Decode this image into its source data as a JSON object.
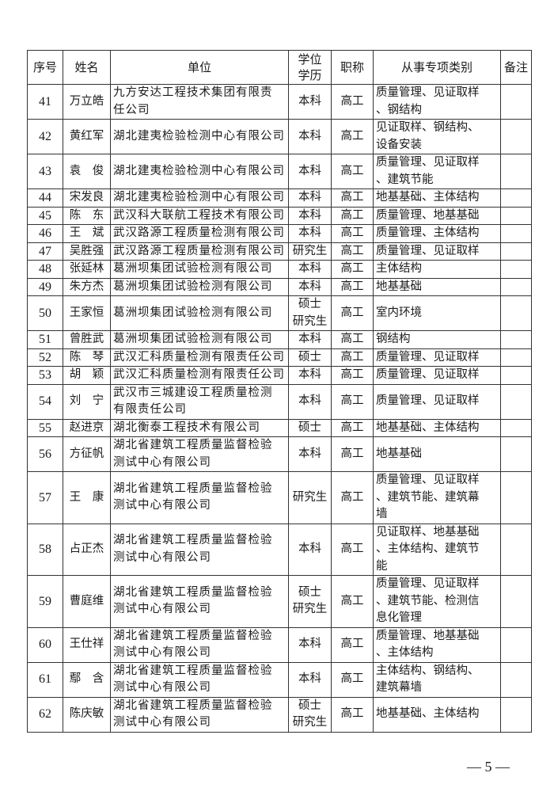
{
  "table": {
    "headers": [
      "序号",
      "姓名",
      "单位",
      "学位\n学历",
      "职称",
      "从事专项类别",
      "备注"
    ],
    "rows": [
      {
        "no": "41",
        "name": "万立皓",
        "unit": "九方安达工程技术集团有限责\n任公司",
        "degree": "本科",
        "title": "高工",
        "categories": "质量管理、见证取样\n、钢结构",
        "remark": ""
      },
      {
        "no": "42",
        "name": "黄红军",
        "unit": "湖北建夷检验检测中心有限公司",
        "degree": "本科",
        "title": "高工",
        "categories": "见证取样、钢结构、\n设备安装",
        "remark": ""
      },
      {
        "no": "43",
        "name": "袁　俊",
        "unit": "湖北建夷检验检测中心有限公司",
        "degree": "本科",
        "title": "高工",
        "categories": "质量管理、见证取样\n、建筑节能",
        "remark": ""
      },
      {
        "no": "44",
        "name": "宋发良",
        "unit": "湖北建夷检验检测中心有限公司",
        "degree": "本科",
        "title": "高工",
        "categories": "地基基础、主体结构",
        "remark": ""
      },
      {
        "no": "45",
        "name": "陈　东",
        "unit": "武汉科大联航工程技术有限公司",
        "degree": "本科",
        "title": "高工",
        "categories": "质量管理、地基基础",
        "remark": ""
      },
      {
        "no": "46",
        "name": "王　斌",
        "unit": "武汉路源工程质量检测有限公司",
        "degree": "本科",
        "title": "高工",
        "categories": "质量管理、主体结构",
        "remark": ""
      },
      {
        "no": "47",
        "name": "吴胜强",
        "unit": "武汉路源工程质量检测有限公司",
        "degree": "研究生",
        "title": "高工",
        "categories": "质量管理、见证取样",
        "remark": ""
      },
      {
        "no": "48",
        "name": "张延林",
        "unit": "葛洲坝集团试验检测有限公司",
        "degree": "本科",
        "title": "高工",
        "categories": "主体结构",
        "remark": ""
      },
      {
        "no": "49",
        "name": "朱方杰",
        "unit": "葛洲坝集团试验检测有限公司",
        "degree": "本科",
        "title": "高工",
        "categories": "地基基础",
        "remark": ""
      },
      {
        "no": "50",
        "name": "王家恒",
        "unit": "葛洲坝集团试验检测有限公司",
        "degree": "硕士\n研究生",
        "title": "高工",
        "categories": "室内环境",
        "remark": ""
      },
      {
        "no": "51",
        "name": "曾胜武",
        "unit": "葛洲坝集团试验检测有限公司",
        "degree": "本科",
        "title": "高工",
        "categories": "钢结构",
        "remark": ""
      },
      {
        "no": "52",
        "name": "陈　琴",
        "unit": "武汉汇科质量检测有限责任公司",
        "degree": "硕士",
        "title": "高工",
        "categories": "质量管理、见证取样",
        "remark": ""
      },
      {
        "no": "53",
        "name": "胡　颖",
        "unit": "武汉汇科质量检测有限责任公司",
        "degree": "本科",
        "title": "高工",
        "categories": "质量管理、见证取样",
        "remark": ""
      },
      {
        "no": "54",
        "name": "刘　宁",
        "unit": "武汉市三城建设工程质量检测\n有限责任公司",
        "degree": "本科",
        "title": "高工",
        "categories": "质量管理、见证取样",
        "remark": ""
      },
      {
        "no": "55",
        "name": "赵进京",
        "unit": "湖北衡泰工程技术有限公司",
        "degree": "硕士",
        "title": "高工",
        "categories": "地基基础、主体结构",
        "remark": ""
      },
      {
        "no": "56",
        "name": "方征帆",
        "unit": "湖北省建筑工程质量监督检验\n测试中心有限公司",
        "degree": "本科",
        "title": "高工",
        "categories": "地基基础",
        "remark": ""
      },
      {
        "no": "57",
        "name": "王　康",
        "unit": "湖北省建筑工程质量监督检验\n测试中心有限公司",
        "degree": "研究生",
        "title": "高工",
        "categories": "质量管理、见证取样\n、建筑节能、建筑幕\n墙",
        "remark": ""
      },
      {
        "no": "58",
        "name": "占正杰",
        "unit": "湖北省建筑工程质量监督检验\n测试中心有限公司",
        "degree": "本科",
        "title": "高工",
        "categories": "见证取样、地基基础\n、主体结构、建筑节\n能",
        "remark": ""
      },
      {
        "no": "59",
        "name": "曹庭维",
        "unit": "湖北省建筑工程质量监督检验\n测试中心有限公司",
        "degree": "硕士\n研究生",
        "title": "高工",
        "categories": "质量管理、见证取样\n、建筑节能、检测信\n息化管理",
        "remark": ""
      },
      {
        "no": "60",
        "name": "王仕祥",
        "unit": "湖北省建筑工程质量监督检验\n测试中心有限公司",
        "degree": "本科",
        "title": "高工",
        "categories": "质量管理、地基基础\n、主体结构",
        "remark": ""
      },
      {
        "no": "61",
        "name": "鄢　含",
        "unit": "湖北省建筑工程质量监督检验\n测试中心有限公司",
        "degree": "本科",
        "title": "高工",
        "categories": "主体结构、钢结构、\n建筑幕墙",
        "remark": ""
      },
      {
        "no": "62",
        "name": "陈庆敏",
        "unit": "湖北省建筑工程质量监督检验\n测试中心有限公司",
        "degree": "硕士\n研究生",
        "title": "高工",
        "categories": "地基基础、主体结构",
        "remark": ""
      }
    ]
  },
  "footer": {
    "page_number": "— 5 —"
  }
}
